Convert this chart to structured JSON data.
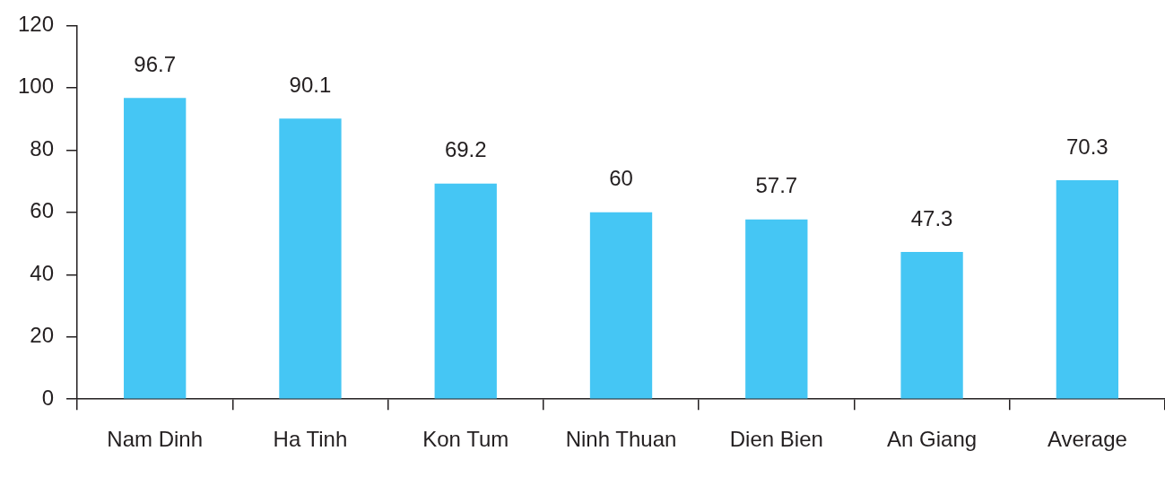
{
  "chart_data": {
    "type": "bar",
    "categories": [
      "Nam Dinh",
      "Ha Tinh",
      "Kon Tum",
      "Ninh Thuan",
      "Dien Bien",
      "An Giang",
      "Average"
    ],
    "values": [
      96.7,
      90.1,
      69.2,
      60,
      57.7,
      47.3,
      70.3
    ],
    "color": "#45c6f4",
    "ylim": [
      0,
      120
    ],
    "yticks": [
      0,
      20,
      40,
      60,
      80,
      100,
      120
    ],
    "data_labels": true,
    "grid": false,
    "legend": false
  }
}
